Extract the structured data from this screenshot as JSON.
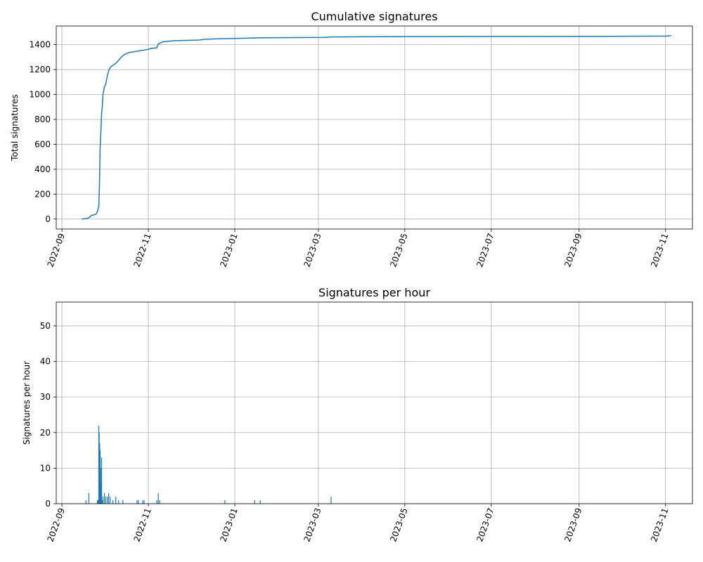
{
  "chart_data": [
    {
      "type": "line",
      "title": "Cumulative signatures",
      "xlabel": "",
      "ylabel": "Total signatures",
      "x_axis": "date",
      "xlim": [
        "2022-08-28",
        "2023-11-20"
      ],
      "ylim": [
        -80,
        1550
      ],
      "xticks": [
        "2022-09",
        "2022-11",
        "2023-01",
        "2023-03",
        "2023-05",
        "2023-07",
        "2023-09",
        "2023-11"
      ],
      "yticks": [
        0,
        200,
        400,
        600,
        800,
        1000,
        1200,
        1400
      ],
      "grid": true,
      "series": [
        {
          "color": "#1f77b4",
          "points": [
            [
              "2022-09-15",
              0
            ],
            [
              "2022-09-18",
              3
            ],
            [
              "2022-09-20",
              10
            ],
            [
              "2022-09-22",
              30
            ],
            [
              "2022-09-25",
              38
            ],
            [
              "2022-09-26",
              60
            ],
            [
              "2022-09-27",
              100
            ],
            [
              "2022-09-27T12",
              280
            ],
            [
              "2022-09-28",
              580
            ],
            [
              "2022-09-28T12",
              700
            ],
            [
              "2022-09-29",
              850
            ],
            [
              "2022-09-29T12",
              900
            ],
            [
              "2022-09-30",
              1000
            ],
            [
              "2022-10-01",
              1060
            ],
            [
              "2022-10-02",
              1085
            ],
            [
              "2022-10-03",
              1150
            ],
            [
              "2022-10-04",
              1190
            ],
            [
              "2022-10-05",
              1215
            ],
            [
              "2022-10-07",
              1235
            ],
            [
              "2022-10-09",
              1250
            ],
            [
              "2022-10-11",
              1275
            ],
            [
              "2022-10-13",
              1300
            ],
            [
              "2022-10-15",
              1320
            ],
            [
              "2022-10-18",
              1335
            ],
            [
              "2022-10-20",
              1340
            ],
            [
              "2022-10-25",
              1350
            ],
            [
              "2022-10-31",
              1360
            ],
            [
              "2022-11-03",
              1370
            ],
            [
              "2022-11-07",
              1375
            ],
            [
              "2022-11-08",
              1405
            ],
            [
              "2022-11-10",
              1418
            ],
            [
              "2022-11-12",
              1424
            ],
            [
              "2022-11-20",
              1432
            ],
            [
              "2022-12-07",
              1437
            ],
            [
              "2022-12-10",
              1443
            ],
            [
              "2022-12-20",
              1447
            ],
            [
              "2023-01-10",
              1452
            ],
            [
              "2023-01-20",
              1455
            ],
            [
              "2023-03-05",
              1458
            ],
            [
              "2023-03-10",
              1462
            ],
            [
              "2023-04-15",
              1464
            ],
            [
              "2023-09-20",
              1467
            ],
            [
              "2023-11-01",
              1469
            ],
            [
              "2023-11-05",
              1473
            ]
          ]
        }
      ]
    },
    {
      "type": "bar",
      "title": "Signatures per hour",
      "xlabel": "",
      "ylabel": "Signatures per hour",
      "x_axis": "date",
      "xlim": [
        "2022-08-28",
        "2023-11-20"
      ],
      "ylim": [
        0,
        56.7
      ],
      "xticks": [
        "2022-09",
        "2022-11",
        "2023-01",
        "2023-03",
        "2023-05",
        "2023-07",
        "2023-09",
        "2023-11"
      ],
      "yticks": [
        0,
        10,
        20,
        30,
        40,
        50
      ],
      "grid": true,
      "series": [
        {
          "color": "#1f77b4",
          "points": [
            [
              "2022-09-18",
              1
            ],
            [
              "2022-09-20",
              3
            ],
            [
              "2022-09-26",
              1
            ],
            [
              "2022-09-26T12",
              1
            ],
            [
              "2022-09-27",
              22
            ],
            [
              "2022-09-27T08",
              20
            ],
            [
              "2022-09-27T16",
              17
            ],
            [
              "2022-09-28",
              15
            ],
            [
              "2022-09-28T08",
              10
            ],
            [
              "2022-09-28T16",
              6
            ],
            [
              "2022-09-29",
              13
            ],
            [
              "2022-09-29T12",
              1
            ],
            [
              "2022-09-30",
              2
            ],
            [
              "2022-10-01",
              3
            ],
            [
              "2022-10-02",
              2
            ],
            [
              "2022-10-03",
              2
            ],
            [
              "2022-10-04",
              3
            ],
            [
              "2022-10-05",
              2
            ],
            [
              "2022-10-07",
              1
            ],
            [
              "2022-10-09",
              2
            ],
            [
              "2022-10-11",
              1
            ],
            [
              "2022-10-14",
              1
            ],
            [
              "2022-10-24",
              1
            ],
            [
              "2022-10-25",
              1
            ],
            [
              "2022-10-28",
              1
            ],
            [
              "2022-10-29",
              1
            ],
            [
              "2022-11-07",
              1
            ],
            [
              "2022-11-08",
              3
            ],
            [
              "2022-11-09",
              1
            ],
            [
              "2022-12-25",
              1
            ],
            [
              "2023-01-15",
              1
            ],
            [
              "2023-01-19",
              1
            ],
            [
              "2023-03-10",
              2
            ]
          ]
        }
      ]
    }
  ]
}
